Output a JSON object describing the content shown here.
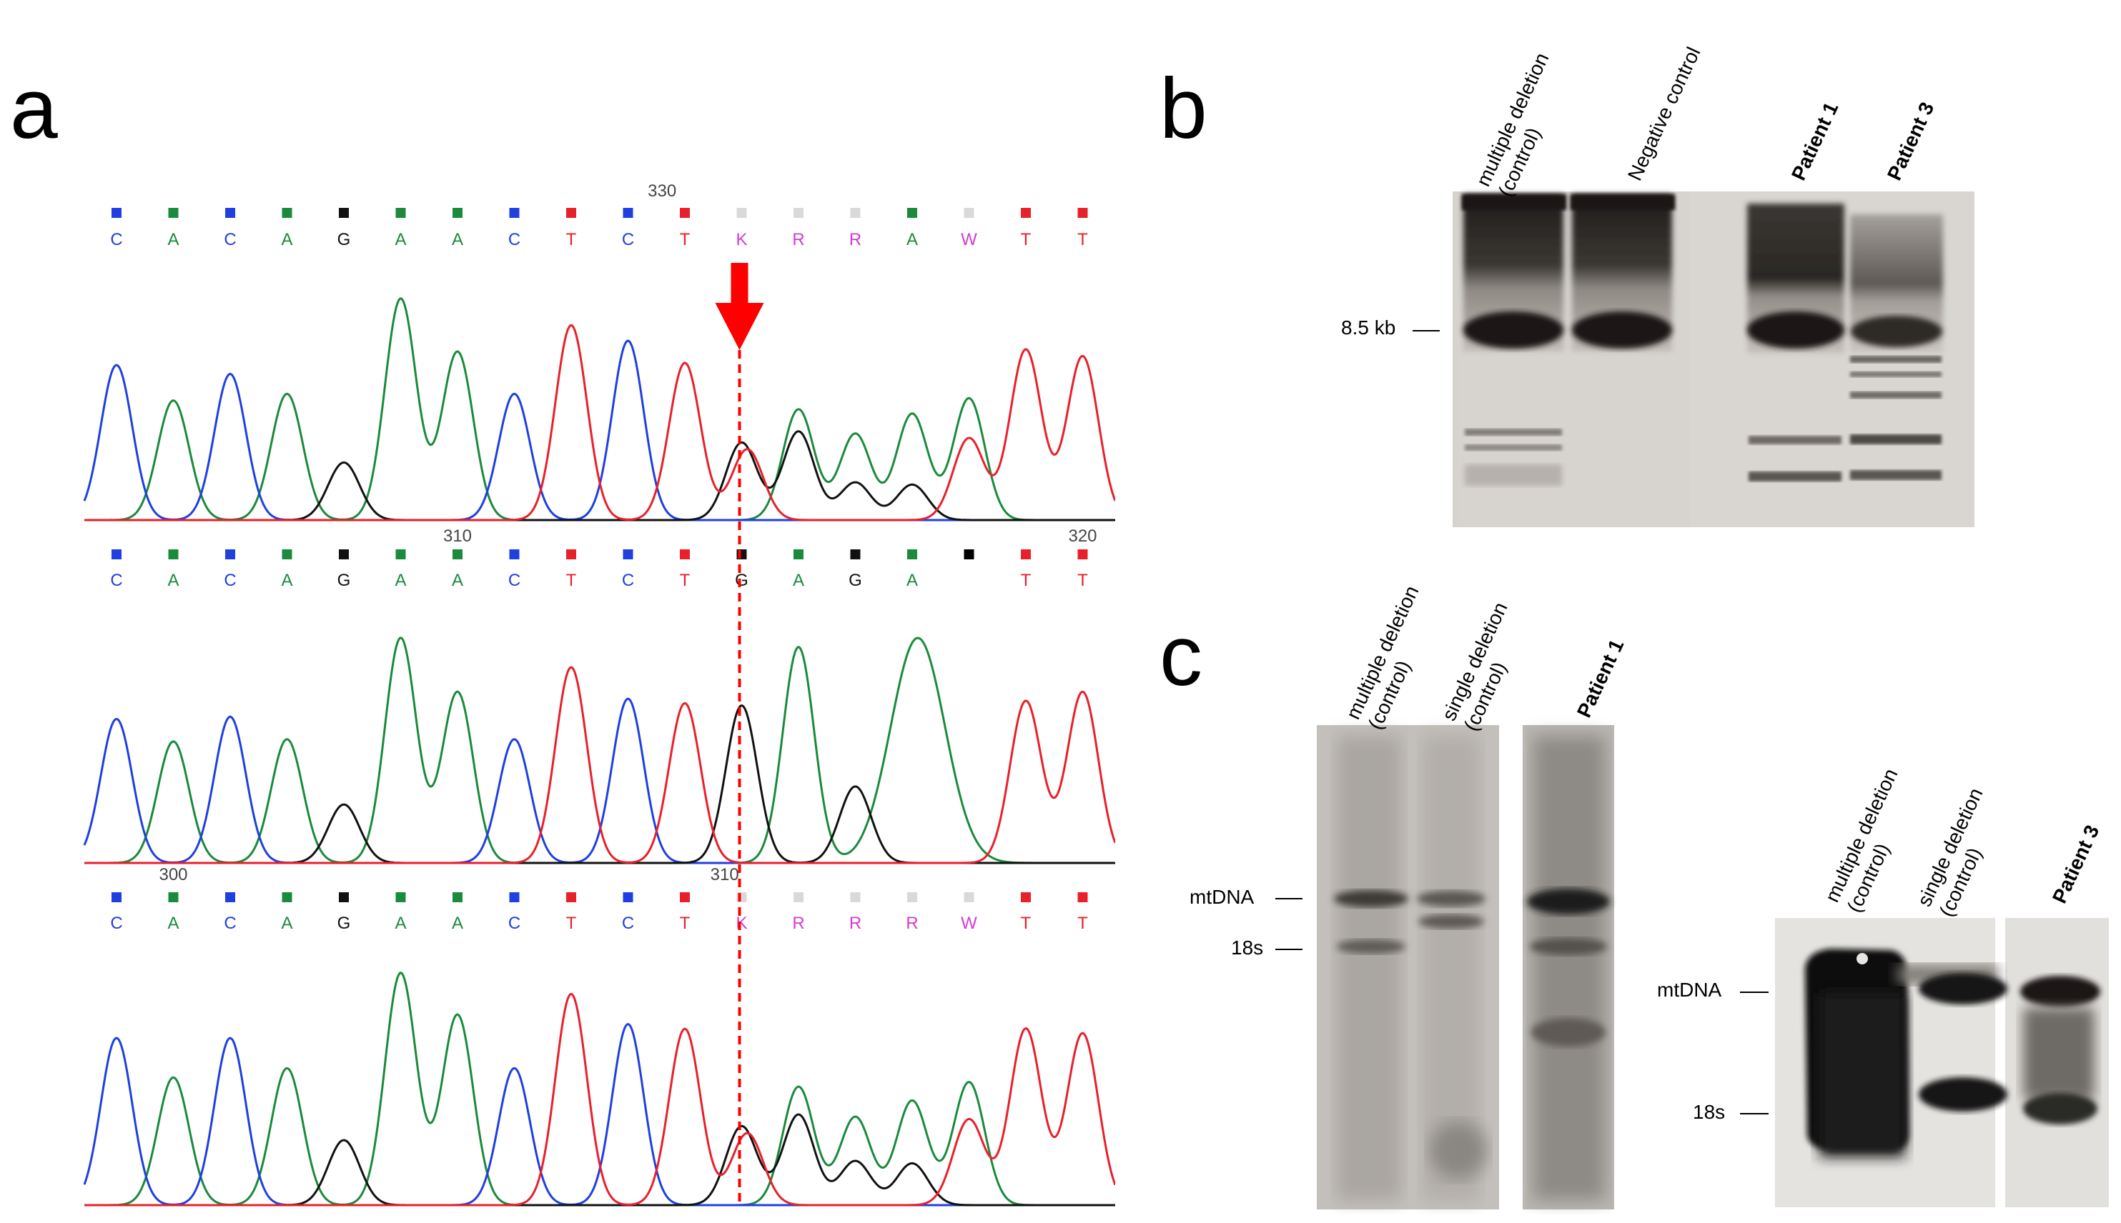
{
  "panels": {
    "a": "a",
    "b": "b",
    "c": "c"
  },
  "panel_a": {
    "tracks": [
      {
        "bases": [
          "C",
          "A",
          "C",
          "A",
          "G",
          "A",
          "A",
          "C",
          "T",
          "C",
          "T",
          "K",
          "R",
          "R",
          "A",
          "W",
          "T",
          "T"
        ],
        "position_labels": [
          {
            "text": "330",
            "after_index": 9.6
          }
        ],
        "peaks": [
          {
            "i": 0,
            "base": "C",
            "h": 0.7
          },
          {
            "i": 1,
            "base": "A",
            "h": 0.54
          },
          {
            "i": 2,
            "base": "C",
            "h": 0.66
          },
          {
            "i": 3,
            "base": "A",
            "h": 0.57
          },
          {
            "i": 4,
            "base": "G",
            "h": 0.26
          },
          {
            "i": 5,
            "base": "A",
            "h": 1.0
          },
          {
            "i": 6,
            "base": "A",
            "h": 0.76
          },
          {
            "i": 7,
            "base": "C",
            "h": 0.57
          },
          {
            "i": 8,
            "base": "T",
            "h": 0.88
          },
          {
            "i": 9,
            "base": "C",
            "h": 0.81
          },
          {
            "i": 10,
            "base": "T",
            "h": 0.71
          },
          {
            "i": 11,
            "base": "G",
            "h": 0.35
          },
          {
            "i": 11.1,
            "base": "T",
            "h": 0.32
          },
          {
            "i": 12,
            "base": "A",
            "h": 0.5
          },
          {
            "i": 12,
            "base": "G",
            "h": 0.4
          },
          {
            "i": 13,
            "base": "A",
            "h": 0.39
          },
          {
            "i": 13,
            "base": "G",
            "h": 0.17
          },
          {
            "i": 14,
            "base": "A",
            "h": 0.48
          },
          {
            "i": 14,
            "base": "G",
            "h": 0.16
          },
          {
            "i": 15,
            "base": "A",
            "h": 0.55
          },
          {
            "i": 15,
            "base": "T",
            "h": 0.37
          },
          {
            "i": 16,
            "base": "T",
            "h": 0.77
          },
          {
            "i": 17,
            "base": "T",
            "h": 0.74
          }
        ]
      },
      {
        "bases": [
          "C",
          "A",
          "C",
          "A",
          "G",
          "A",
          "A",
          "C",
          "T",
          "C",
          "T",
          "G",
          "A",
          "G",
          "A",
          "",
          "T",
          "T"
        ],
        "position_labels": [
          {
            "text": "310",
            "after_index": 6.0
          },
          {
            "text": "320",
            "after_index": 17.0
          }
        ],
        "peaks": [
          {
            "i": 0,
            "base": "C",
            "h": 0.64
          },
          {
            "i": 1,
            "base": "A",
            "h": 0.54
          },
          {
            "i": 2,
            "base": "C",
            "h": 0.65
          },
          {
            "i": 3,
            "base": "A",
            "h": 0.55
          },
          {
            "i": 4,
            "base": "G",
            "h": 0.26
          },
          {
            "i": 5,
            "base": "A",
            "h": 1.0
          },
          {
            "i": 6,
            "base": "A",
            "h": 0.76
          },
          {
            "i": 7,
            "base": "C",
            "h": 0.55
          },
          {
            "i": 8,
            "base": "T",
            "h": 0.87
          },
          {
            "i": 9,
            "base": "C",
            "h": 0.73
          },
          {
            "i": 10,
            "base": "T",
            "h": 0.71
          },
          {
            "i": 11,
            "base": "G",
            "h": 0.7
          },
          {
            "i": 12,
            "base": "A",
            "h": 0.96
          },
          {
            "i": 13,
            "base": "G",
            "h": 0.34
          },
          {
            "i": 14.1,
            "base": "A",
            "h": 1.0
          },
          {
            "i": 16,
            "base": "T",
            "h": 0.72
          },
          {
            "i": 17,
            "base": "T",
            "h": 0.76
          }
        ]
      },
      {
        "bases": [
          "C",
          "A",
          "C",
          "A",
          "G",
          "A",
          "A",
          "C",
          "T",
          "C",
          "T",
          "K",
          "R",
          "R",
          "R",
          "W",
          "T",
          "T"
        ],
        "position_labels": [
          {
            "text": "300",
            "after_index": 1.0
          },
          {
            "text": "310",
            "after_index": 10.7
          }
        ],
        "peaks": [
          {
            "i": 0,
            "base": "C",
            "h": 0.72
          },
          {
            "i": 1,
            "base": "A",
            "h": 0.55
          },
          {
            "i": 2,
            "base": "C",
            "h": 0.72
          },
          {
            "i": 3,
            "base": "A",
            "h": 0.59
          },
          {
            "i": 4,
            "base": "G",
            "h": 0.28
          },
          {
            "i": 5,
            "base": "A",
            "h": 1.0
          },
          {
            "i": 6,
            "base": "A",
            "h": 0.82
          },
          {
            "i": 7,
            "base": "C",
            "h": 0.59
          },
          {
            "i": 8,
            "base": "T",
            "h": 0.91
          },
          {
            "i": 9,
            "base": "C",
            "h": 0.78
          },
          {
            "i": 10,
            "base": "T",
            "h": 0.76
          },
          {
            "i": 11,
            "base": "G",
            "h": 0.34
          },
          {
            "i": 11.1,
            "base": "T",
            "h": 0.31
          },
          {
            "i": 12,
            "base": "A",
            "h": 0.51
          },
          {
            "i": 12,
            "base": "G",
            "h": 0.39
          },
          {
            "i": 13,
            "base": "A",
            "h": 0.38
          },
          {
            "i": 13,
            "base": "G",
            "h": 0.19
          },
          {
            "i": 14,
            "base": "A",
            "h": 0.45
          },
          {
            "i": 14,
            "base": "G",
            "h": 0.18
          },
          {
            "i": 15,
            "base": "A",
            "h": 0.53
          },
          {
            "i": 15,
            "base": "T",
            "h": 0.37
          },
          {
            "i": 16,
            "base": "T",
            "h": 0.76
          },
          {
            "i": 17,
            "base": "T",
            "h": 0.74
          }
        ]
      }
    ],
    "variant_index": 11,
    "colors": {
      "A": "#1a8a3c",
      "C": "#1f3fe0",
      "G": "#111111",
      "T": "#e8202a",
      "K": "#d23bd2",
      "R": "#d23bd2",
      "W": "#d23bd2",
      "N": "#cccccc",
      "arrow": "#ff0000"
    }
  },
  "panel_b": {
    "lanes": [
      "multiple deletion\n(control)",
      "Negative control",
      "Patient 1",
      "Patient 3"
    ],
    "marker": "8.5 kb"
  },
  "panel_c": {
    "left": {
      "lanes": [
        "multiple deletion\n(control)",
        "single deletion\n(control)",
        "Patient 1"
      ],
      "markers": [
        "mtDNA",
        "18s"
      ]
    },
    "right": {
      "lanes": [
        "multiple deletion\n(control)",
        "single deletion\n(control)",
        "Patient 3"
      ],
      "markers": [
        "mtDNA",
        "18s"
      ]
    }
  }
}
